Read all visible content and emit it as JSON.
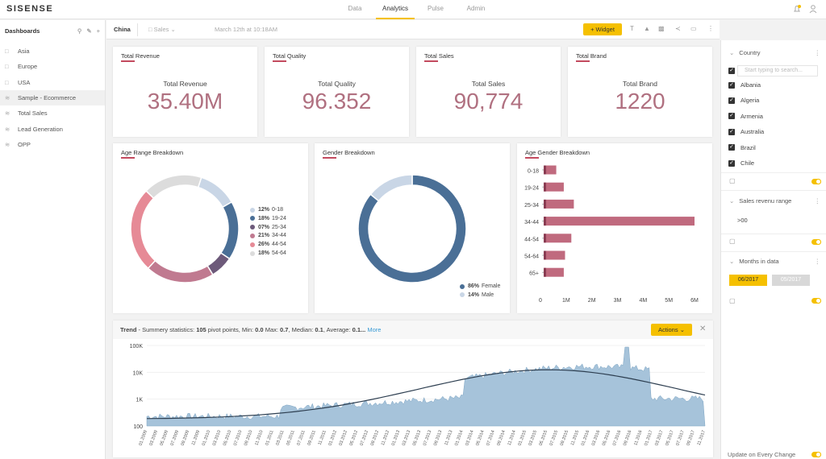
{
  "app": {
    "logo": "SISENSE",
    "nav": [
      "Data",
      "Analytics",
      "Pulse",
      "Admin"
    ],
    "active_nav": "Analytics"
  },
  "sidebar": {
    "title": "Dashboards",
    "items": [
      {
        "label": "Asia",
        "icon": "folder-icon"
      },
      {
        "label": "Europe",
        "icon": "folder-icon"
      },
      {
        "label": "USA",
        "icon": "folder-icon"
      },
      {
        "label": "Sample - Ecommerce",
        "icon": "dashboard-icon"
      },
      {
        "label": "Total Sales",
        "icon": "dashboard-icon"
      },
      {
        "label": "Lead Generation",
        "icon": "dashboard-icon"
      },
      {
        "label": "OPP",
        "icon": "dashboard-icon"
      }
    ]
  },
  "toolbar": {
    "title": "China",
    "folder": "Sales",
    "date": "March 12th at 10:18AM",
    "widget_label": "+ Widget"
  },
  "kpis": [
    {
      "title": "Total Revenue",
      "label": "Total Revenue",
      "value": "35.40M"
    },
    {
      "title": "Total Quality",
      "label": "Total Quality",
      "value": "96.352"
    },
    {
      "title": "Total Sales",
      "label": "Total Sales",
      "value": "90,774"
    },
    {
      "title": "Total Brand",
      "label": "Total Brand",
      "value": "1220"
    }
  ],
  "widgets": {
    "age_range": {
      "title": "Age Range Breakdown"
    },
    "gender": {
      "title": "Gender Breakdown"
    },
    "age_gender": {
      "title": "Age Gender Breakdown"
    }
  },
  "age_range": [
    {
      "pct": "12%",
      "label": "0-18",
      "value": 12,
      "color": "#c9d6e6"
    },
    {
      "pct": "18%",
      "label": "19-24",
      "value": 18,
      "color": "#4a6f96"
    },
    {
      "pct": "07%",
      "label": "25-34",
      "value": 7,
      "color": "#6d5a7a"
    },
    {
      "pct": "21%",
      "label": "34-44",
      "value": 21,
      "color": "#c07a90"
    },
    {
      "pct": "26%",
      "label": "44-54",
      "value": 26,
      "color": "#e68a96"
    },
    {
      "pct": "18%",
      "label": "54-64",
      "value": 18,
      "color": "#dcdcdc"
    }
  ],
  "gender": [
    {
      "pct": "86%",
      "label": "Female",
      "value": 86,
      "color": "#4a6f96"
    },
    {
      "pct": "14%",
      "label": "Male",
      "value": 14,
      "color": "#c9d6e6"
    }
  ],
  "chart_data": [
    {
      "type": "bar",
      "title": "Age Gender Breakdown",
      "categories": [
        "0-18",
        "19-24",
        "25-34",
        "34-44",
        "44-54",
        "54-64",
        "65+"
      ],
      "values": [
        500000,
        800000,
        1200000,
        6000000,
        1100000,
        850000,
        800000
      ],
      "xlim": [
        0,
        6000000
      ],
      "xticks": [
        "0",
        "1M",
        "2M",
        "3M",
        "4M",
        "5M",
        "6M"
      ]
    },
    {
      "type": "area",
      "title": "Trend",
      "yscale": "log",
      "yticks": [
        "100K",
        "10K",
        "1K",
        "100"
      ],
      "x_range": [
        "01.2009",
        "12.2017"
      ],
      "x_tick_labels": [
        "01.2009",
        "03.2009",
        "05.2009",
        "07.2009",
        "09.2009",
        "11.2009",
        "01.2010",
        "03.2010",
        "05.2010",
        "07.2010",
        "09.2010",
        "11.2010",
        "01.2011",
        "03.2011",
        "05.2011",
        "07.2011",
        "09.2011",
        "11.2011",
        "01.2012",
        "03.2012",
        "05.2012",
        "07.2012",
        "09.2012",
        "11.2012",
        "01.2013",
        "03.2013",
        "05.2013",
        "07.2013",
        "09.2013",
        "11.2013",
        "01.2014",
        "03.2014",
        "05.2014",
        "07.2014",
        "09.2014",
        "11.2014",
        "01.2015",
        "03.2015",
        "05.2015",
        "07.2015",
        "09.2015",
        "11.2015",
        "01.2016",
        "03.2016",
        "05.2016",
        "07.2016",
        "09.2016",
        "11.2016",
        "01.2017",
        "03.2017",
        "05.2017",
        "07.2017",
        "09.2017",
        "11.2017"
      ]
    }
  ],
  "trend": {
    "title": "Trend",
    "summary_label": "Summery statistics:",
    "pivot_points": "105",
    "min": "0.0",
    "max": "0.7",
    "median": "0.1",
    "average": "0.1...",
    "more": "More",
    "actions": "Actions"
  },
  "filters": {
    "country": {
      "title": "Country",
      "placeholder": "Start typing to search...",
      "items": [
        "Albania",
        "Algeria",
        "Armenia",
        "Australia",
        "Brazil",
        "Chile"
      ]
    },
    "sales_range": {
      "title": "Sales revenu range",
      "value": ">00"
    },
    "months": {
      "title": "Months in data",
      "from": "06/2017",
      "to": "05/2017"
    },
    "update_label": "Update on Every Change"
  },
  "colors": {
    "accent": "#f5c000",
    "kpi": "#b07080",
    "bar": "#c06a7e",
    "area": "#a6c3da",
    "line": "#2d3e50"
  }
}
